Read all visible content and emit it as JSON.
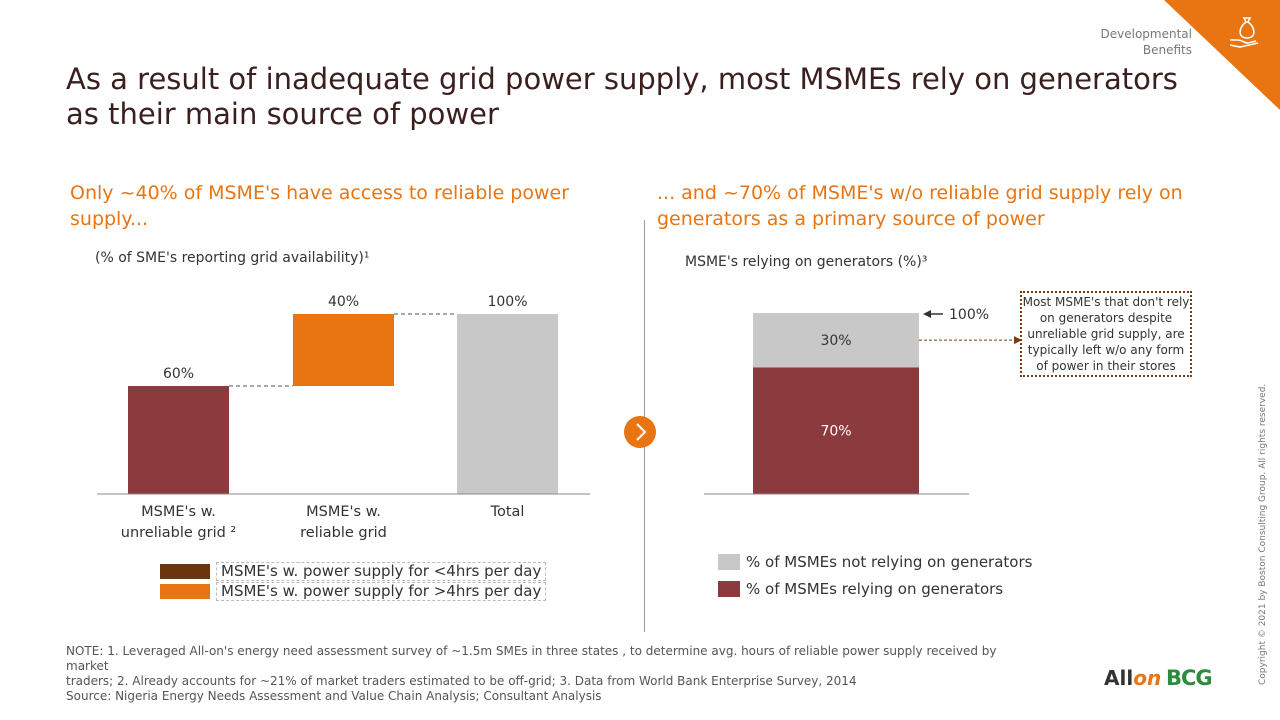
{
  "header": {
    "section_line1": "Developmental",
    "section_line2": "Benefits",
    "title": "As a result of inadequate grid power supply, most MSMEs rely on generators as their main source of power"
  },
  "colors": {
    "accent": "#e87511",
    "maroon": "#8b3a3e",
    "gray": "#c8c8c8",
    "dark_brown": "#6b3510"
  },
  "left": {
    "subtitle": "Only ~40% of MSME's have access to reliable power supply...",
    "caption": "(% of SME's reporting grid availability)¹",
    "legend": [
      {
        "label": "MSME's w. power supply for <4hrs per day",
        "color": "#6b3510"
      },
      {
        "label": "MSME's w. power supply for >4hrs per day",
        "color": "#e87511"
      }
    ]
  },
  "right": {
    "subtitle": "... and ~70% of MSME's w/o reliable grid supply rely on generators as a primary source of power",
    "caption": "MSME's relying on generators (%)³",
    "callout": "Most MSME's that don't rely on generators despite unreliable grid supply, are typically left w/o any form of power in their stores",
    "legend": [
      {
        "label": "% of MSMEs not relying on generators",
        "color": "#c8c8c8"
      },
      {
        "label": "% of MSMEs relying on generators",
        "color": "#8b3a3e"
      }
    ]
  },
  "chart_data": [
    {
      "type": "bar",
      "subtype": "waterfall",
      "categories": [
        "MSME's w. unreliable grid ²",
        "MSME's w. reliable grid",
        "Total"
      ],
      "category_lines": [
        [
          "MSME's w.",
          "unreliable grid ²"
        ],
        [
          "MSME's w.",
          "reliable grid"
        ],
        [
          "Total"
        ]
      ],
      "values": [
        60,
        40,
        100
      ],
      "data_labels": [
        "60%",
        "40%",
        "100%"
      ],
      "ylim": [
        0,
        100
      ]
    },
    {
      "type": "bar",
      "subtype": "stacked",
      "categories": [
        ""
      ],
      "series": [
        {
          "name": "% of MSMEs relying on generators",
          "values": [
            70
          ],
          "label": "70%"
        },
        {
          "name": "% of MSMEs not relying on generators",
          "values": [
            30
          ],
          "label": "30%"
        }
      ],
      "total_label": "100%",
      "ylim": [
        0,
        100
      ]
    }
  ],
  "notes": {
    "line1": "NOTE: 1. Leveraged All-on's energy need assessment survey of ~1.5m SMEs in three states , to determine avg. hours of reliable power supply received by market",
    "line2": "traders; 2. Already accounts for ~21% of market traders estimated to be off-grid; 3. Data from World Bank Enterprise Survey, 2014",
    "line3": "Source: Nigeria Energy Needs Assessment and Value Chain Analysis; Consultant Analysis"
  },
  "footer": {
    "copyright": "Copyright © 2021 by Boston Consulting Group. All rights reserved.",
    "logo_allon_a": "All",
    "logo_allon_b": "on",
    "logo_bcg": "BCG"
  }
}
